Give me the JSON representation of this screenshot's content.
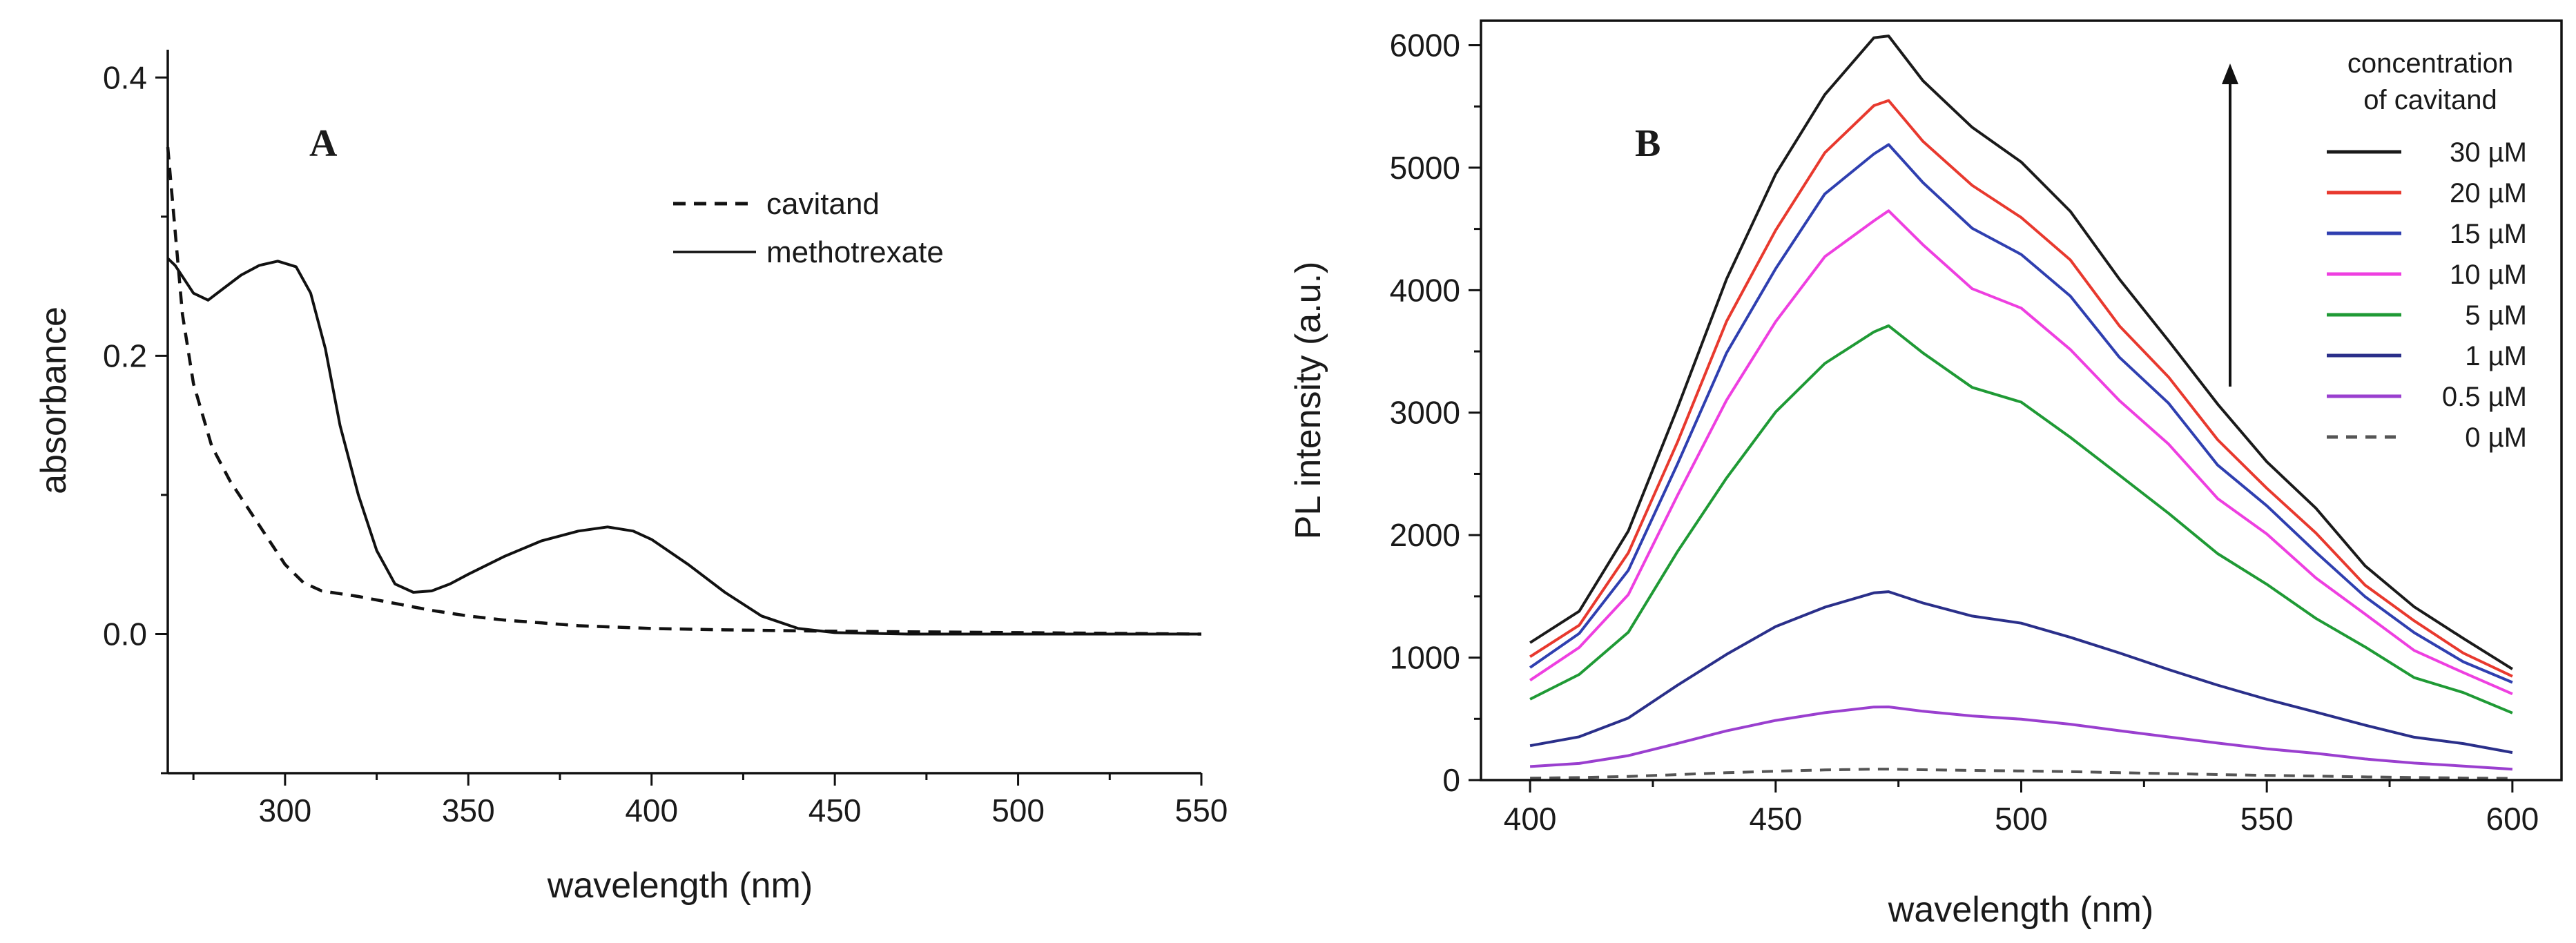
{
  "chart_data": [
    {
      "type": "line",
      "panel_label": "A",
      "xlabel": "wavelength (nm)",
      "ylabel": "absorbance",
      "xlim": [
        268,
        550
      ],
      "ylim": [
        -0.1,
        0.42
      ],
      "xticks": [
        300,
        350,
        400,
        450,
        500,
        550
      ],
      "xtick_labels": [
        "300",
        "350",
        "400",
        "450",
        "500",
        "550"
      ],
      "yticks": [
        0.0,
        0.2,
        0.4
      ],
      "ytick_labels": [
        "0.0",
        "0.2",
        "0.4"
      ],
      "legend_position": "top-right",
      "series": [
        {
          "name": "cavitand",
          "style": "dashed",
          "color": "#111111",
          "points": [
            [
              268,
              0.35
            ],
            [
              270,
              0.29
            ],
            [
              272,
              0.23
            ],
            [
              275,
              0.18
            ],
            [
              280,
              0.135
            ],
            [
              285,
              0.11
            ],
            [
              290,
              0.09
            ],
            [
              295,
              0.07
            ],
            [
              300,
              0.05
            ],
            [
              305,
              0.037
            ],
            [
              310,
              0.031
            ],
            [
              320,
              0.027
            ],
            [
              330,
              0.022
            ],
            [
              340,
              0.017
            ],
            [
              350,
              0.013
            ],
            [
              360,
              0.01
            ],
            [
              370,
              0.008
            ],
            [
              380,
              0.006
            ],
            [
              390,
              0.005
            ],
            [
              400,
              0.004
            ],
            [
              420,
              0.003
            ],
            [
              450,
              0.002
            ],
            [
              500,
              0.001
            ],
            [
              550,
              0.0
            ]
          ]
        },
        {
          "name": "methotrexate",
          "style": "solid",
          "color": "#111111",
          "points": [
            [
              268,
              0.27
            ],
            [
              270,
              0.265
            ],
            [
              275,
              0.245
            ],
            [
              279,
              0.24
            ],
            [
              283,
              0.248
            ],
            [
              288,
              0.258
            ],
            [
              293,
              0.265
            ],
            [
              298,
              0.268
            ],
            [
              303,
              0.264
            ],
            [
              307,
              0.245
            ],
            [
              311,
              0.205
            ],
            [
              315,
              0.15
            ],
            [
              320,
              0.1
            ],
            [
              325,
              0.06
            ],
            [
              330,
              0.036
            ],
            [
              335,
              0.03
            ],
            [
              340,
              0.031
            ],
            [
              345,
              0.036
            ],
            [
              350,
              0.043
            ],
            [
              360,
              0.056
            ],
            [
              370,
              0.067
            ],
            [
              380,
              0.074
            ],
            [
              388,
              0.077
            ],
            [
              395,
              0.074
            ],
            [
              400,
              0.068
            ],
            [
              410,
              0.05
            ],
            [
              420,
              0.03
            ],
            [
              430,
              0.013
            ],
            [
              440,
              0.004
            ],
            [
              450,
              0.001
            ],
            [
              470,
              0.0
            ],
            [
              500,
              0.0
            ],
            [
              550,
              0.0
            ]
          ]
        }
      ]
    },
    {
      "type": "line",
      "panel_label": "B",
      "xlabel": "wavelength (nm)",
      "ylabel": "PL intensity (a.u.)",
      "xlim": [
        390,
        610
      ],
      "ylim": [
        0,
        6200
      ],
      "xticks": [
        400,
        450,
        500,
        550,
        600
      ],
      "xtick_labels": [
        "400",
        "450",
        "500",
        "550",
        "600"
      ],
      "yticks": [
        0,
        1000,
        2000,
        3000,
        4000,
        5000,
        6000
      ],
      "ytick_labels": [
        "0",
        "1000",
        "2000",
        "3000",
        "4000",
        "5000",
        "6000"
      ],
      "legend_title": [
        "concentration",
        "of cavitand"
      ],
      "legend_position": "top-right",
      "arrow_direction": "up",
      "series": [
        {
          "name": "30 µM",
          "style": "solid",
          "color": "#1a1a1a",
          "peak": 6100
        },
        {
          "name": "20 µM",
          "style": "solid",
          "color": "#e8392e",
          "peak": 5560
        },
        {
          "name": "15 µM",
          "style": "solid",
          "color": "#2f3fb0",
          "peak": 5180
        },
        {
          "name": "10 µM",
          "style": "solid",
          "color": "#ee3fe0",
          "peak": 4630
        },
        {
          "name": "5 µM",
          "style": "solid",
          "color": "#1f9a35",
          "peak": 3700
        },
        {
          "name": "1 µM",
          "style": "solid",
          "color": "#2a2f8a",
          "peak": 1540
        },
        {
          "name": "0.5 µM",
          "style": "solid",
          "color": "#9a3fcf",
          "peak": 600
        },
        {
          "name": "0 µM",
          "style": "dashed",
          "color": "#555555",
          "peak": 90
        }
      ],
      "normalized_shape": [
        [
          400,
          0.18
        ],
        [
          410,
          0.23
        ],
        [
          420,
          0.33
        ],
        [
          430,
          0.5
        ],
        [
          440,
          0.67
        ],
        [
          450,
          0.81
        ],
        [
          460,
          0.92
        ],
        [
          470,
          0.99
        ],
        [
          473,
          1.0
        ],
        [
          480,
          0.94
        ],
        [
          490,
          0.87
        ],
        [
          500,
          0.83
        ],
        [
          510,
          0.76
        ],
        [
          520,
          0.67
        ],
        [
          530,
          0.59
        ],
        [
          540,
          0.5
        ],
        [
          550,
          0.43
        ],
        [
          560,
          0.36
        ],
        [
          570,
          0.29
        ],
        [
          580,
          0.23
        ],
        [
          590,
          0.19
        ],
        [
          600,
          0.15
        ]
      ]
    }
  ]
}
